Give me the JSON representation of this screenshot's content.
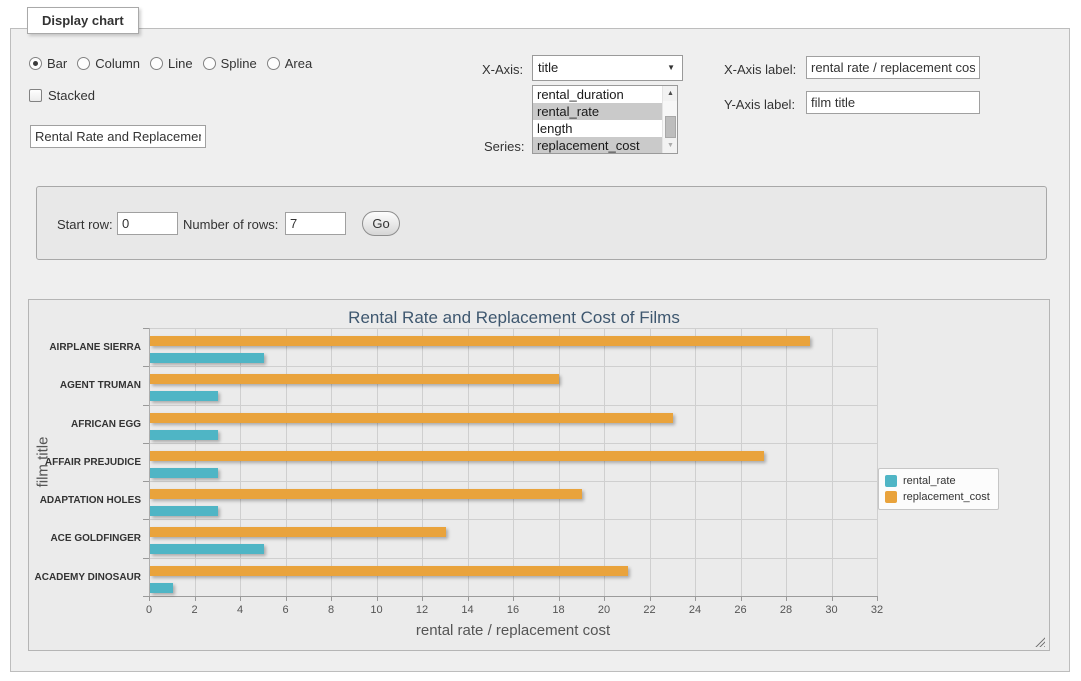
{
  "form": {
    "legend": "Display chart",
    "chart_types": [
      {
        "label": "Bar",
        "selected": true
      },
      {
        "label": "Column",
        "selected": false
      },
      {
        "label": "Line",
        "selected": false
      },
      {
        "label": "Spline",
        "selected": false
      },
      {
        "label": "Area",
        "selected": false
      }
    ],
    "stacked": {
      "label": "Stacked",
      "checked": false
    },
    "title_input": {
      "value": "Rental Rate and Replacement Cost of Films"
    },
    "x_axis": {
      "label": "X-Axis:",
      "selected": "title"
    },
    "series_select": {
      "label": "Series:",
      "options": [
        {
          "label": "rental_duration",
          "selected": false
        },
        {
          "label": "rental_rate",
          "selected": true
        },
        {
          "label": "length",
          "selected": false
        },
        {
          "label": "replacement_cost",
          "selected": true
        }
      ]
    },
    "x_axis_label": {
      "label": "X-Axis label:",
      "value": "rental rate / replacement cost"
    },
    "y_axis_label": {
      "label": "Y-Axis label:",
      "value": "film title"
    },
    "rows": {
      "start_label": "Start row:",
      "start_value": "0",
      "count_label": "Number of rows:",
      "count_value": "7",
      "go_label": "Go"
    }
  },
  "icons": {
    "select_arrow": "▼",
    "scroll_up": "▲",
    "scroll_down": "▼"
  },
  "chart_data": {
    "type": "bar",
    "title": "Rental Rate and Replacement Cost of Films",
    "xlabel": "rental rate / replacement cost",
    "ylabel": "film title",
    "categories": [
      "AIRPLANE SIERRA",
      "AGENT TRUMAN",
      "AFRICAN EGG",
      "AFFAIR PREJUDICE",
      "ADAPTATION HOLES",
      "ACE GOLDFINGER",
      "ACADEMY DINOSAUR"
    ],
    "series": [
      {
        "name": "rental_rate",
        "color": "#4FB5C5",
        "values": [
          4.99,
          2.99,
          2.99,
          2.99,
          2.99,
          4.99,
          0.99
        ]
      },
      {
        "name": "replacement_cost",
        "color": "#E9A33C",
        "values": [
          28.99,
          17.99,
          22.99,
          26.99,
          18.99,
          12.99,
          20.99
        ]
      }
    ],
    "xlim": [
      0,
      32
    ],
    "tick_interval": 2,
    "grid": true,
    "legend_position": "right",
    "bar_group_order": "replacement_cost above rental_rate"
  }
}
